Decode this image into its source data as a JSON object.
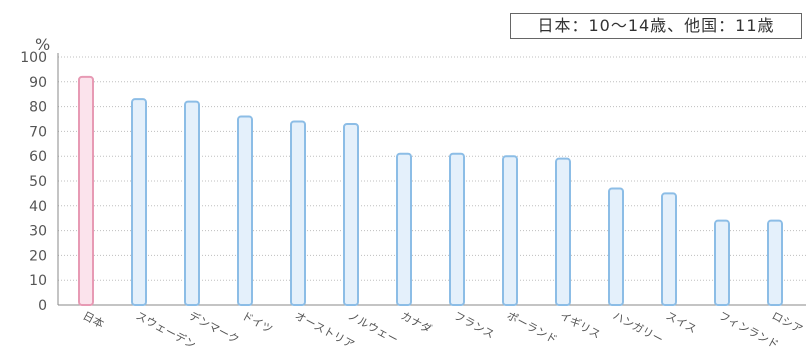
{
  "chart_data": {
    "type": "bar",
    "note": "日本：10～14歳、他国：11歳",
    "ylabel": "%",
    "ylim": [
      0,
      100
    ],
    "yticks": [
      0,
      10,
      20,
      30,
      40,
      50,
      60,
      70,
      80,
      90,
      100
    ],
    "grid": true,
    "categories": [
      "日本",
      "スウェーデン",
      "デンマーク",
      "ドイツ",
      "オーストリア",
      "ノルウェー",
      "カナダ",
      "フランス",
      "ポーランド",
      "イギリス",
      "ハンガリー",
      "スイス",
      "フィンランド",
      "ロシア"
    ],
    "values": [
      92,
      83,
      82,
      76,
      74,
      73,
      61,
      61,
      60,
      59,
      47,
      45,
      34,
      34
    ],
    "highlight_index": 0
  },
  "colors": {
    "highlight_fill": "#fbe3ec",
    "highlight_stroke": "#e79ab4",
    "bar_fill": "#e4f0fb",
    "bar_stroke": "#8cbde6",
    "grid": "#bfbfbf",
    "axis": "#888888",
    "text": "#555555"
  }
}
